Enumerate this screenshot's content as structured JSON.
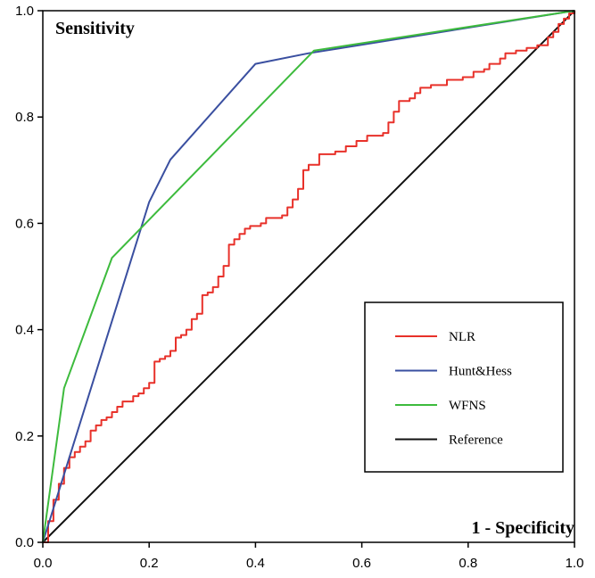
{
  "chart_data": {
    "type": "line",
    "xlabel": "1 - Specificity",
    "ylabel": "Sensitivity",
    "xlim": [
      0,
      1
    ],
    "ylim": [
      0,
      1
    ],
    "x_ticks": [
      "0.0",
      "0.2",
      "0.4",
      "0.6",
      "0.8",
      "1.0"
    ],
    "y_ticks": [
      "0.0",
      "0.2",
      "0.4",
      "0.6",
      "0.8",
      "1.0"
    ],
    "grid": false,
    "legend_position": "bottom-right",
    "series": [
      {
        "name": "NLR",
        "color": "#e8312a",
        "step": true,
        "points": [
          [
            0.0,
            0.0
          ],
          [
            0.01,
            0.04
          ],
          [
            0.02,
            0.08
          ],
          [
            0.03,
            0.11
          ],
          [
            0.04,
            0.14
          ],
          [
            0.05,
            0.16
          ],
          [
            0.06,
            0.17
          ],
          [
            0.07,
            0.18
          ],
          [
            0.08,
            0.19
          ],
          [
            0.09,
            0.21
          ],
          [
            0.1,
            0.22
          ],
          [
            0.11,
            0.23
          ],
          [
            0.12,
            0.235
          ],
          [
            0.13,
            0.245
          ],
          [
            0.14,
            0.255
          ],
          [
            0.15,
            0.265
          ],
          [
            0.17,
            0.275
          ],
          [
            0.18,
            0.28
          ],
          [
            0.19,
            0.29
          ],
          [
            0.2,
            0.3
          ],
          [
            0.21,
            0.34
          ],
          [
            0.22,
            0.345
          ],
          [
            0.23,
            0.35
          ],
          [
            0.24,
            0.36
          ],
          [
            0.25,
            0.385
          ],
          [
            0.26,
            0.39
          ],
          [
            0.27,
            0.4
          ],
          [
            0.28,
            0.42
          ],
          [
            0.29,
            0.43
          ],
          [
            0.3,
            0.465
          ],
          [
            0.31,
            0.47
          ],
          [
            0.32,
            0.48
          ],
          [
            0.33,
            0.5
          ],
          [
            0.34,
            0.52
          ],
          [
            0.35,
            0.56
          ],
          [
            0.36,
            0.57
          ],
          [
            0.37,
            0.58
          ],
          [
            0.38,
            0.59
          ],
          [
            0.39,
            0.595
          ],
          [
            0.41,
            0.6
          ],
          [
            0.42,
            0.61
          ],
          [
            0.45,
            0.615
          ],
          [
            0.46,
            0.63
          ],
          [
            0.47,
            0.645
          ],
          [
            0.48,
            0.665
          ],
          [
            0.49,
            0.7
          ],
          [
            0.5,
            0.71
          ],
          [
            0.52,
            0.73
          ],
          [
            0.55,
            0.735
          ],
          [
            0.57,
            0.745
          ],
          [
            0.59,
            0.755
          ],
          [
            0.61,
            0.765
          ],
          [
            0.64,
            0.77
          ],
          [
            0.65,
            0.79
          ],
          [
            0.66,
            0.81
          ],
          [
            0.67,
            0.83
          ],
          [
            0.69,
            0.835
          ],
          [
            0.7,
            0.845
          ],
          [
            0.71,
            0.855
          ],
          [
            0.73,
            0.86
          ],
          [
            0.76,
            0.87
          ],
          [
            0.79,
            0.875
          ],
          [
            0.81,
            0.885
          ],
          [
            0.83,
            0.89
          ],
          [
            0.84,
            0.9
          ],
          [
            0.86,
            0.91
          ],
          [
            0.87,
            0.92
          ],
          [
            0.89,
            0.925
          ],
          [
            0.91,
            0.93
          ],
          [
            0.93,
            0.935
          ],
          [
            0.95,
            0.95
          ],
          [
            0.96,
            0.96
          ],
          [
            0.97,
            0.975
          ],
          [
            0.98,
            0.985
          ],
          [
            0.99,
            0.995
          ],
          [
            1.0,
            1.0
          ]
        ]
      },
      {
        "name": "Hunt&Hess",
        "color": "#3a4fa0",
        "step": false,
        "points": [
          [
            0.0,
            0.0
          ],
          [
            0.2,
            0.64
          ],
          [
            0.24,
            0.72
          ],
          [
            0.4,
            0.9
          ],
          [
            0.5,
            0.92
          ],
          [
            1.0,
            1.0
          ]
        ]
      },
      {
        "name": "WFNS",
        "color": "#3dbb3d",
        "step": false,
        "points": [
          [
            0.0,
            0.0
          ],
          [
            0.04,
            0.29
          ],
          [
            0.13,
            0.535
          ],
          [
            0.51,
            0.925
          ],
          [
            1.0,
            1.0
          ]
        ]
      },
      {
        "name": "Reference",
        "color": "#111111",
        "step": false,
        "points": [
          [
            0.0,
            0.0
          ],
          [
            1.0,
            1.0
          ]
        ]
      }
    ]
  }
}
